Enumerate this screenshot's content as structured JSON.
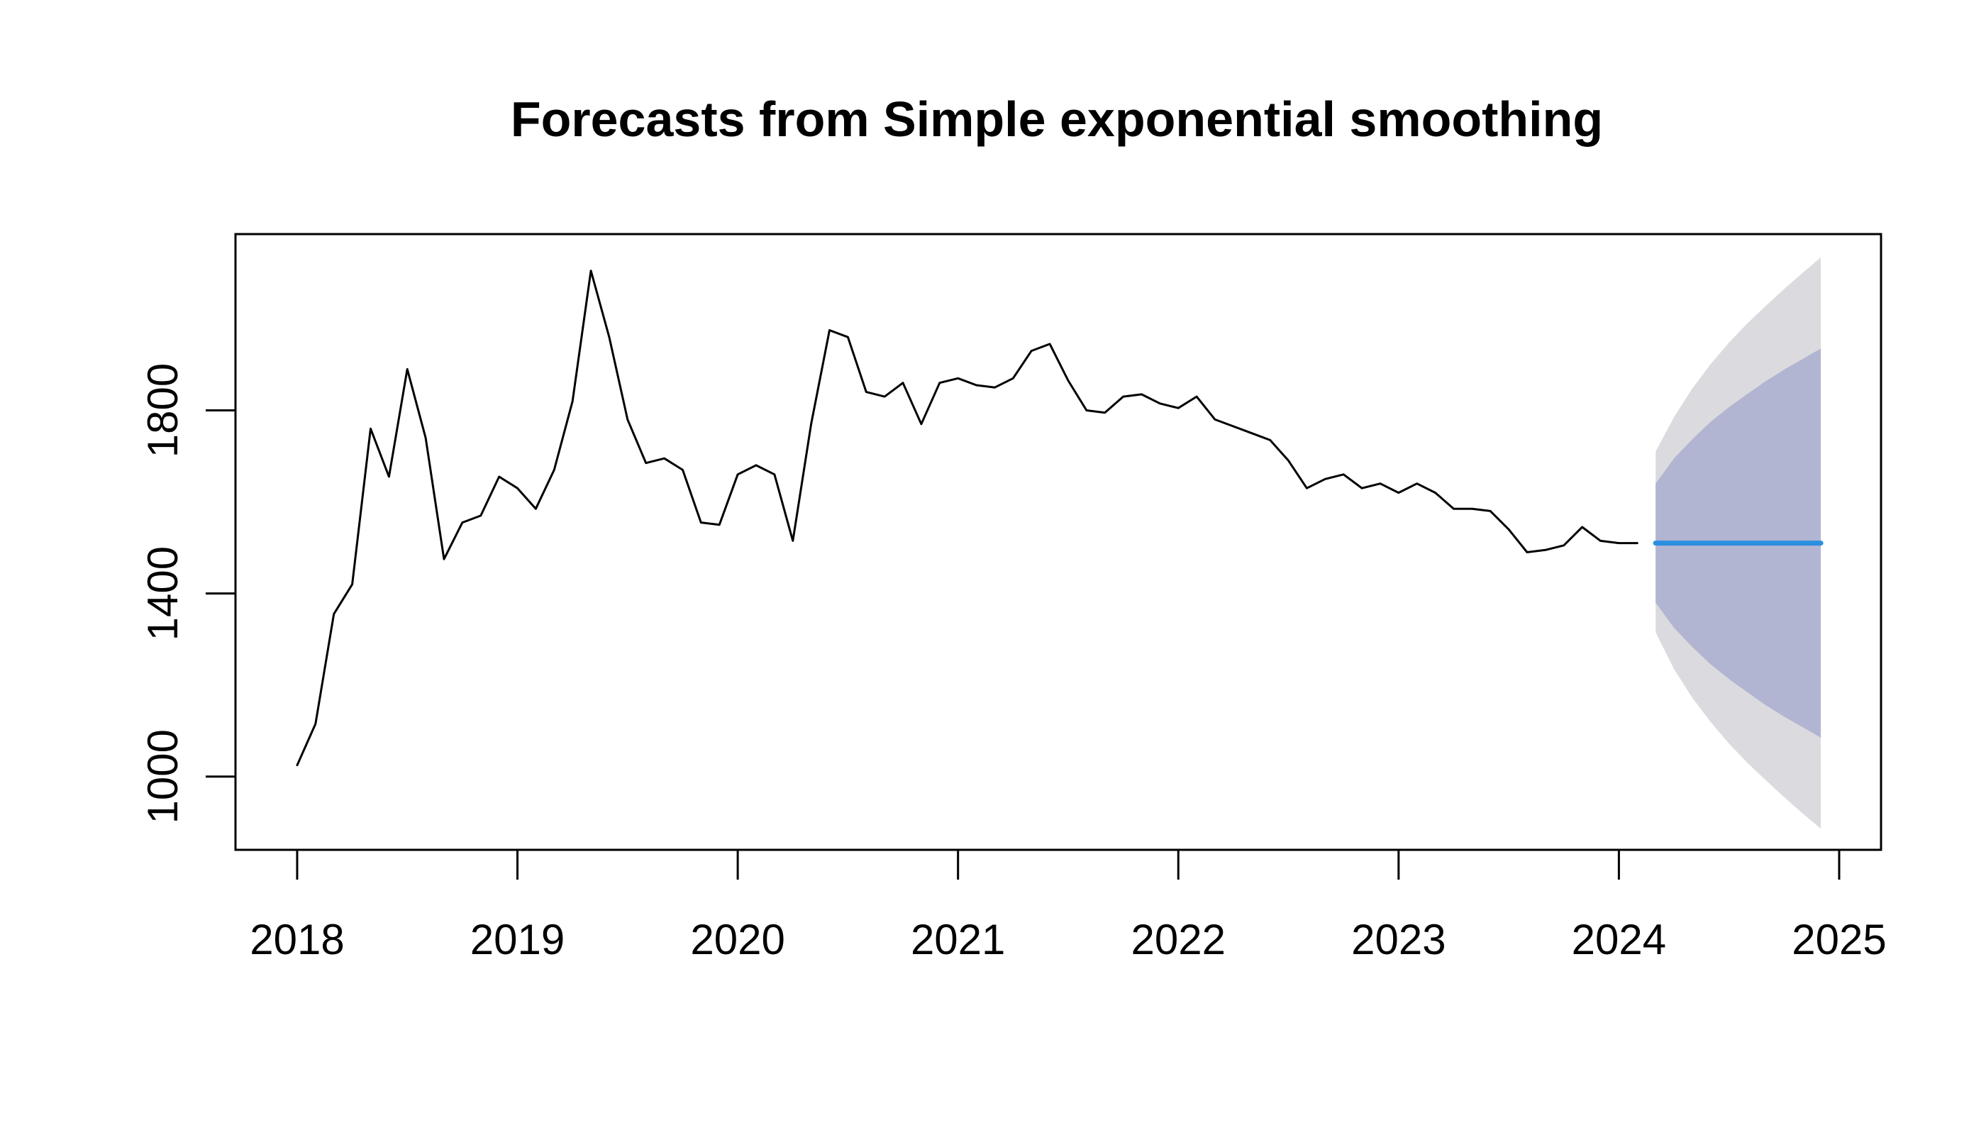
{
  "chart_data": {
    "type": "line",
    "title": "Forecasts from Simple exponential smoothing",
    "xlabel": "",
    "ylabel": "",
    "xlim": [
      2017.72,
      2025.19
    ],
    "ylim": [
      840,
      2185
    ],
    "x_ticks": [
      2018,
      2019,
      2020,
      2021,
      2022,
      2023,
      2024,
      2025
    ],
    "y_ticks": [
      1000,
      1400,
      1800
    ],
    "x_tick_labels": [
      "2018",
      "2019",
      "2020",
      "2021",
      "2022",
      "2023",
      "2024",
      "2025"
    ],
    "y_tick_labels": [
      "1000",
      "1400",
      "1800"
    ],
    "grid": false,
    "series": [
      {
        "role": "observed",
        "start": 2018.0,
        "step": 0.0833333,
        "color": "#000000",
        "values": [
          1025,
          1115,
          1355,
          1420,
          1760,
          1655,
          1890,
          1740,
          1475,
          1555,
          1570,
          1655,
          1630,
          1585,
          1670,
          1820,
          2105,
          1960,
          1780,
          1685,
          1695,
          1670,
          1555,
          1550,
          1660,
          1680,
          1660,
          1515,
          1770,
          1975,
          1960,
          1840,
          1830,
          1860,
          1770,
          1860,
          1870,
          1855,
          1850,
          1870,
          1930,
          1945,
          1865,
          1800,
          1795,
          1830,
          1835,
          1815,
          1805,
          1830,
          1780,
          1765,
          1750,
          1735,
          1690,
          1630,
          1650,
          1660,
          1630,
          1640,
          1620,
          1640,
          1620,
          1585,
          1585,
          1580,
          1540,
          1490,
          1495,
          1505,
          1545,
          1515,
          1510,
          1510
        ]
      },
      {
        "role": "point_forecast",
        "start": 2024.1667,
        "step": 0.0833333,
        "color": "#2b8fe0",
        "values": [
          1510,
          1510,
          1510,
          1510,
          1510,
          1510,
          1510,
          1510,
          1510,
          1510
        ]
      }
    ],
    "intervals": [
      {
        "level": 95,
        "color": "#dbdbdf",
        "start": 2024.1667,
        "step": 0.0833333,
        "lower": [
          1315,
          1235,
          1172,
          1119,
          1072,
          1030,
          992,
          955,
          920,
          886
        ],
        "upper": [
          1710,
          1785,
          1848,
          1901,
          1948,
          1990,
          2028,
          2065,
          2100,
          2134
        ]
      },
      {
        "level": 80,
        "color": "#b1b5d1",
        "start": 2024.1667,
        "step": 0.0833333,
        "lower": [
          1380,
          1325,
          1283,
          1245,
          1213,
          1184,
          1156,
          1131,
          1108,
          1085
        ],
        "upper": [
          1640,
          1695,
          1737,
          1775,
          1807,
          1836,
          1864,
          1889,
          1912,
          1935
        ]
      }
    ]
  }
}
